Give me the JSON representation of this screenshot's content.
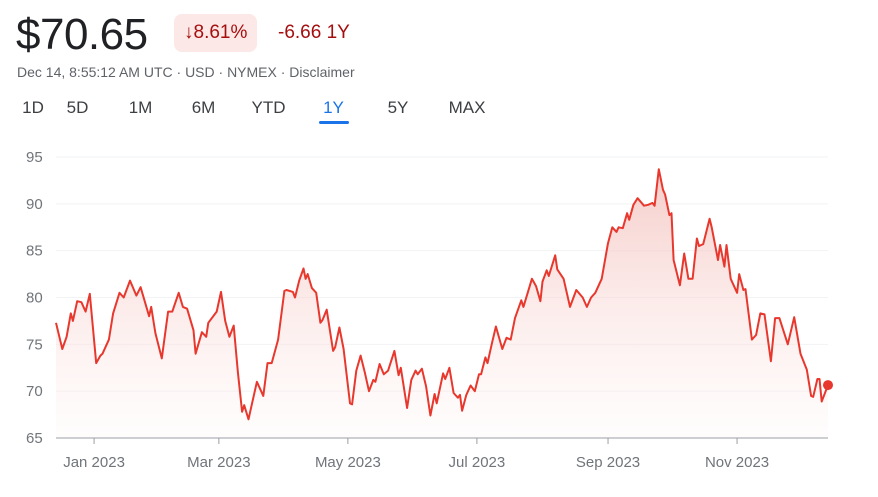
{
  "header": {
    "price": "$70.65",
    "change_percent": "8.61%",
    "change_icon": "arrow-down-icon",
    "change_abs": "-6.66 1Y",
    "meta": "Dec 14, 8:55:12 AM UTC · USD · NYMEX · Disclaimer"
  },
  "tabs": [
    {
      "label": "1D"
    },
    {
      "label": "5D"
    },
    {
      "label": "1M"
    },
    {
      "label": "6M"
    },
    {
      "label": "YTD"
    },
    {
      "label": "1Y",
      "active": true
    },
    {
      "label": "5Y"
    },
    {
      "label": "MAX"
    }
  ],
  "colors": {
    "line": "#e8382e",
    "fill": "#f4c7c3",
    "down": "#a50e0e",
    "accent": "#1a73e8"
  },
  "chart_data": {
    "type": "area",
    "title": "",
    "xlabel": "",
    "ylabel": "",
    "ylim": [
      65,
      95
    ],
    "xlim": [
      "2022-12-14",
      "2023-12-14"
    ],
    "grid": true,
    "y_ticks": [
      "95",
      "90",
      "85",
      "80",
      "75",
      "70",
      "65"
    ],
    "x_ticks": [
      {
        "date": "2023-01-01",
        "label": "Jan 2023"
      },
      {
        "date": "2023-03-01",
        "label": "Mar 2023"
      },
      {
        "date": "2023-05-01",
        "label": "May 2023"
      },
      {
        "date": "2023-07-01",
        "label": "Jul 2023"
      },
      {
        "date": "2023-09-01",
        "label": "Sep 2023"
      },
      {
        "date": "2023-11-01",
        "label": "Nov 2023"
      }
    ],
    "points": [
      [
        "2022-12-14",
        77.3
      ],
      [
        "2022-12-17",
        74.5
      ],
      [
        "2022-12-19",
        75.8
      ],
      [
        "2022-12-21",
        78.3
      ],
      [
        "2022-12-22",
        77.5
      ],
      [
        "2022-12-24",
        79.6
      ],
      [
        "2022-12-26",
        79.5
      ],
      [
        "2022-12-28",
        78.5
      ],
      [
        "2022-12-30",
        80.4
      ],
      [
        "2023-01-02",
        73.0
      ],
      [
        "2023-01-04",
        73.8
      ],
      [
        "2023-01-05",
        74.0
      ],
      [
        "2023-01-08",
        75.5
      ],
      [
        "2023-01-10",
        78.3
      ],
      [
        "2023-01-13",
        80.5
      ],
      [
        "2023-01-15",
        80.0
      ],
      [
        "2023-01-18",
        81.8
      ],
      [
        "2023-01-21",
        80.2
      ],
      [
        "2023-01-23",
        81.1
      ],
      [
        "2023-01-27",
        78.0
      ],
      [
        "2023-01-28",
        79.0
      ],
      [
        "2023-01-30",
        76.2
      ],
      [
        "2023-02-02",
        73.5
      ],
      [
        "2023-02-05",
        78.5
      ],
      [
        "2023-02-07",
        78.5
      ],
      [
        "2023-02-10",
        80.5
      ],
      [
        "2023-02-12",
        79.0
      ],
      [
        "2023-02-14",
        78.8
      ],
      [
        "2023-02-17",
        76.5
      ],
      [
        "2023-02-18",
        74.0
      ],
      [
        "2023-02-21",
        76.3
      ],
      [
        "2023-02-23",
        75.8
      ],
      [
        "2023-02-24",
        77.3
      ],
      [
        "2023-02-28",
        78.5
      ],
      [
        "2023-03-02",
        80.6
      ],
      [
        "2023-03-04",
        77.5
      ],
      [
        "2023-03-06",
        75.8
      ],
      [
        "2023-03-08",
        77.0
      ],
      [
        "2023-03-10",
        72.0
      ],
      [
        "2023-03-12",
        67.8
      ],
      [
        "2023-03-13",
        68.5
      ],
      [
        "2023-03-15",
        67.0
      ],
      [
        "2023-03-17",
        69.0
      ],
      [
        "2023-03-19",
        71.0
      ],
      [
        "2023-03-22",
        69.5
      ],
      [
        "2023-03-24",
        73.0
      ],
      [
        "2023-03-26",
        73.0
      ],
      [
        "2023-03-29",
        75.5
      ],
      [
        "2023-04-01",
        80.7
      ],
      [
        "2023-04-02",
        80.8
      ],
      [
        "2023-04-05",
        80.6
      ],
      [
        "2023-04-06",
        80.0
      ],
      [
        "2023-04-08",
        81.8
      ],
      [
        "2023-04-10",
        83.1
      ],
      [
        "2023-04-11",
        82.0
      ],
      [
        "2023-04-12",
        82.5
      ],
      [
        "2023-04-14",
        81.0
      ],
      [
        "2023-04-16",
        80.5
      ],
      [
        "2023-04-18",
        77.3
      ],
      [
        "2023-04-19",
        77.6
      ],
      [
        "2023-04-21",
        78.7
      ],
      [
        "2023-04-24",
        74.3
      ],
      [
        "2023-04-25",
        74.7
      ],
      [
        "2023-04-27",
        76.8
      ],
      [
        "2023-04-29",
        74.5
      ],
      [
        "2023-05-02",
        68.7
      ],
      [
        "2023-05-03",
        68.6
      ],
      [
        "2023-05-05",
        72.2
      ],
      [
        "2023-05-07",
        73.8
      ],
      [
        "2023-05-09",
        72.0
      ],
      [
        "2023-05-11",
        70.0
      ],
      [
        "2023-05-13",
        71.2
      ],
      [
        "2023-05-14",
        71.0
      ],
      [
        "2023-05-16",
        72.9
      ],
      [
        "2023-05-18",
        71.8
      ],
      [
        "2023-05-20",
        72.2
      ],
      [
        "2023-05-23",
        74.3
      ],
      [
        "2023-05-25",
        71.7
      ],
      [
        "2023-05-26",
        72.5
      ],
      [
        "2023-05-29",
        68.2
      ],
      [
        "2023-05-31",
        71.2
      ],
      [
        "2023-06-02",
        72.2
      ],
      [
        "2023-06-03",
        71.8
      ],
      [
        "2023-06-05",
        72.4
      ],
      [
        "2023-06-07",
        70.5
      ],
      [
        "2023-06-09",
        67.4
      ],
      [
        "2023-06-11",
        69.7
      ],
      [
        "2023-06-12",
        68.7
      ],
      [
        "2023-06-15",
        71.9
      ],
      [
        "2023-06-16",
        71.3
      ],
      [
        "2023-06-18",
        72.5
      ],
      [
        "2023-06-20",
        69.8
      ],
      [
        "2023-06-22",
        69.3
      ],
      [
        "2023-06-23",
        69.6
      ],
      [
        "2023-06-24",
        67.9
      ],
      [
        "2023-06-26",
        69.6
      ],
      [
        "2023-06-28",
        70.6
      ],
      [
        "2023-06-30",
        70.0
      ],
      [
        "2023-07-02",
        71.8
      ],
      [
        "2023-07-03",
        71.8
      ],
      [
        "2023-07-05",
        73.6
      ],
      [
        "2023-07-06",
        73.0
      ],
      [
        "2023-07-08",
        75.0
      ],
      [
        "2023-07-10",
        76.9
      ],
      [
        "2023-07-13",
        74.5
      ],
      [
        "2023-07-15",
        75.7
      ],
      [
        "2023-07-17",
        75.5
      ],
      [
        "2023-07-19",
        77.8
      ],
      [
        "2023-07-22",
        79.7
      ],
      [
        "2023-07-23",
        79.0
      ],
      [
        "2023-07-25",
        80.5
      ],
      [
        "2023-07-27",
        82.0
      ],
      [
        "2023-07-29",
        81.2
      ],
      [
        "2023-07-31",
        79.6
      ],
      [
        "2023-08-01",
        81.7
      ],
      [
        "2023-08-03",
        82.9
      ],
      [
        "2023-08-04",
        82.3
      ],
      [
        "2023-08-07",
        84.5
      ],
      [
        "2023-08-08",
        83.0
      ],
      [
        "2023-08-11",
        82.0
      ],
      [
        "2023-08-14",
        79.0
      ],
      [
        "2023-08-17",
        80.8
      ],
      [
        "2023-08-20",
        80.0
      ],
      [
        "2023-08-22",
        79.0
      ],
      [
        "2023-08-24",
        80.0
      ],
      [
        "2023-08-26",
        80.5
      ],
      [
        "2023-08-29",
        82.0
      ],
      [
        "2023-09-01",
        85.8
      ],
      [
        "2023-09-03",
        87.5
      ],
      [
        "2023-09-05",
        87.0
      ],
      [
        "2023-09-06",
        87.5
      ],
      [
        "2023-09-08",
        87.4
      ],
      [
        "2023-09-10",
        89.0
      ],
      [
        "2023-09-11",
        88.3
      ],
      [
        "2023-09-13",
        89.9
      ],
      [
        "2023-09-15",
        90.6
      ],
      [
        "2023-09-18",
        89.8
      ],
      [
        "2023-09-20",
        89.9
      ],
      [
        "2023-09-22",
        90.1
      ],
      [
        "2023-09-23",
        89.8
      ],
      [
        "2023-09-25",
        93.7
      ],
      [
        "2023-09-27",
        91.5
      ],
      [
        "2023-09-28",
        91.0
      ],
      [
        "2023-09-30",
        88.8
      ],
      [
        "2023-10-01",
        89.0
      ],
      [
        "2023-10-02",
        84.0
      ],
      [
        "2023-10-05",
        81.3
      ],
      [
        "2023-10-07",
        84.7
      ],
      [
        "2023-10-09",
        82.0
      ],
      [
        "2023-10-11",
        82.0
      ],
      [
        "2023-10-13",
        86.3
      ],
      [
        "2023-10-14",
        85.5
      ],
      [
        "2023-10-16",
        85.7
      ],
      [
        "2023-10-19",
        88.4
      ],
      [
        "2023-10-20",
        87.5
      ],
      [
        "2023-10-23",
        84.0
      ],
      [
        "2023-10-24",
        85.6
      ],
      [
        "2023-10-26",
        83.3
      ],
      [
        "2023-10-27",
        85.6
      ],
      [
        "2023-10-29",
        82.0
      ],
      [
        "2023-11-01",
        80.5
      ],
      [
        "2023-11-02",
        82.5
      ],
      [
        "2023-11-04",
        80.8
      ],
      [
        "2023-11-05",
        80.9
      ],
      [
        "2023-11-08",
        75.5
      ],
      [
        "2023-11-10",
        76.0
      ],
      [
        "2023-11-12",
        78.3
      ],
      [
        "2023-11-14",
        78.2
      ],
      [
        "2023-11-17",
        73.2
      ],
      [
        "2023-11-19",
        77.8
      ],
      [
        "2023-11-21",
        77.8
      ],
      [
        "2023-11-25",
        75.0
      ],
      [
        "2023-11-28",
        77.9
      ],
      [
        "2023-12-01",
        74.0
      ],
      [
        "2023-12-04",
        72.3
      ],
      [
        "2023-12-06",
        69.5
      ],
      [
        "2023-12-07",
        69.4
      ],
      [
        "2023-12-09",
        71.3
      ],
      [
        "2023-12-10",
        71.3
      ],
      [
        "2023-12-11",
        68.9
      ],
      [
        "2023-12-14",
        70.65
      ]
    ]
  }
}
